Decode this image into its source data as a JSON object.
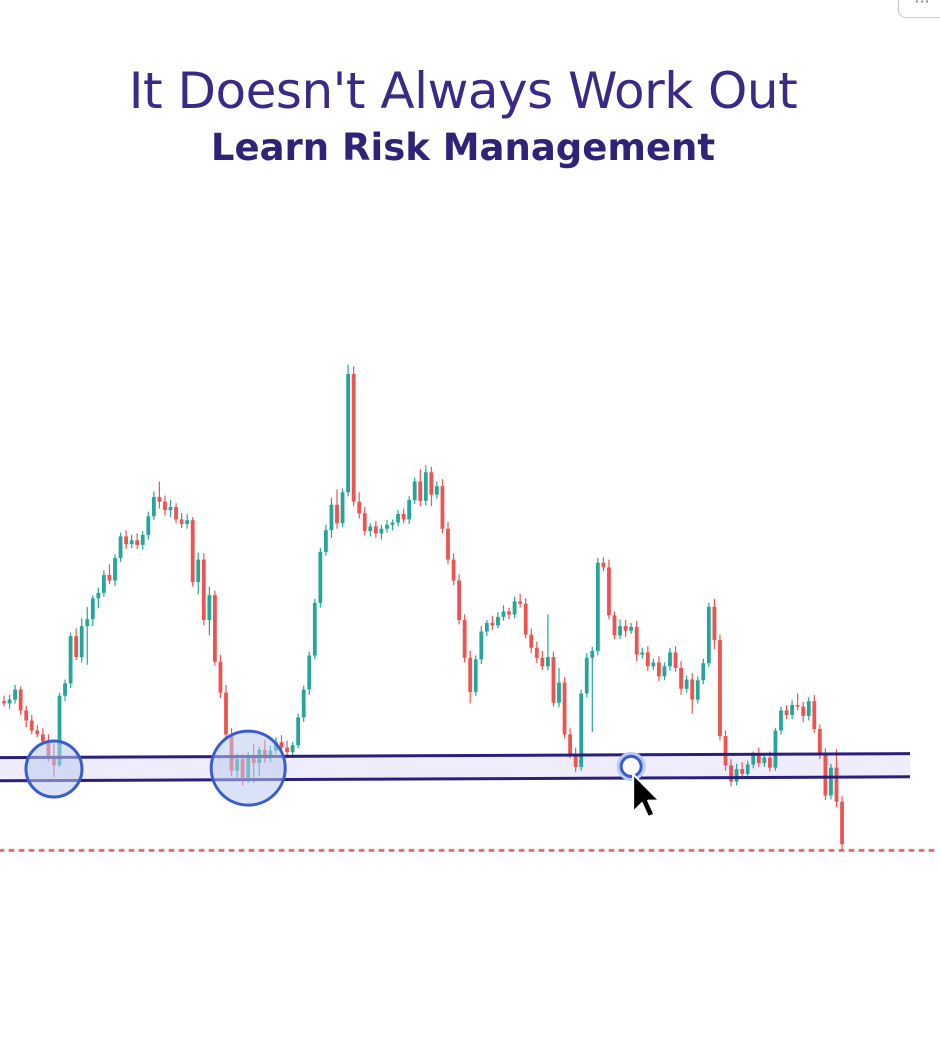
{
  "header": {
    "title": "It Doesn't Always Work Out",
    "subtitle": "Learn Risk Management"
  },
  "toolbar": {
    "more_label": "···",
    "more_icon": "ellipsis-icon"
  },
  "colors": {
    "bullish": "#26a69a",
    "bearish": "#ef5350",
    "zone_line": "#2a1f7c",
    "zone_fill": "#efedfb",
    "touch_circle": "#3b5ccc",
    "touch_fill": "#b9cbf1",
    "target_line": "#e07070",
    "cursor": "#000000"
  },
  "chart_data": {
    "type": "candlestick",
    "grid": false,
    "support_zone": {
      "upper": 63,
      "lower": 60
    },
    "touch_markers": [
      {
        "type": "circle",
        "index": 9
      },
      {
        "type": "circle",
        "index": 44
      },
      {
        "type": "small-circle",
        "index": 113
      }
    ],
    "target_level": 51,
    "cursor_index": 113,
    "ylim": [
      42,
      117
    ],
    "candles": [
      [
        70.3,
        71.0,
        69.6,
        70.0
      ],
      [
        70.0,
        71.1,
        69.3,
        70.5
      ],
      [
        70.5,
        72.4,
        70.0,
        71.8
      ],
      [
        71.8,
        72.2,
        68.5,
        69.1
      ],
      [
        69.1,
        69.7,
        66.9,
        67.8
      ],
      [
        67.8,
        68.5,
        66.0,
        66.5
      ],
      [
        66.5,
        67.2,
        65.6,
        66.0
      ],
      [
        66.0,
        66.8,
        64.6,
        65.1
      ],
      [
        65.1,
        66.0,
        62.5,
        63.2
      ],
      [
        63.2,
        64.8,
        60.5,
        62.0
      ],
      [
        62.0,
        71.4,
        61.8,
        71.0
      ],
      [
        71.0,
        73.1,
        70.3,
        72.6
      ],
      [
        72.6,
        79.1,
        72.0,
        78.7
      ],
      [
        78.7,
        79.7,
        75.6,
        76.0
      ],
      [
        76.0,
        81.0,
        75.3,
        80.0
      ],
      [
        80.0,
        82.5,
        75.0,
        80.9
      ],
      [
        80.9,
        84.0,
        80.0,
        83.6
      ],
      [
        83.6,
        85.0,
        82.3,
        84.3
      ],
      [
        84.3,
        87.2,
        83.8,
        86.6
      ],
      [
        86.6,
        88.0,
        85.4,
        85.9
      ],
      [
        85.9,
        89.3,
        85.2,
        88.8
      ],
      [
        88.8,
        92.1,
        88.3,
        91.6
      ],
      [
        91.6,
        92.4,
        90.0,
        90.6
      ],
      [
        90.6,
        91.8,
        90.1,
        91.1
      ],
      [
        91.1,
        92.0,
        90.0,
        90.5
      ],
      [
        90.5,
        92.3,
        89.9,
        91.8
      ],
      [
        91.8,
        94.8,
        91.2,
        94.2
      ],
      [
        94.2,
        97.4,
        93.7,
        96.7
      ],
      [
        96.7,
        98.7,
        95.2,
        96.1
      ],
      [
        96.1,
        96.9,
        94.3,
        95.0
      ],
      [
        95.0,
        96.3,
        94.1,
        95.4
      ],
      [
        95.4,
        95.9,
        93.3,
        93.8
      ],
      [
        93.8,
        94.6,
        92.7,
        93.2
      ],
      [
        93.2,
        94.5,
        92.6,
        93.7
      ],
      [
        93.7,
        94.1,
        85.1,
        85.7
      ],
      [
        85.7,
        89.5,
        84.1,
        88.6
      ],
      [
        88.6,
        89.4,
        80.1,
        80.8
      ],
      [
        80.8,
        85.1,
        78.8,
        84.0
      ],
      [
        84.0,
        84.6,
        74.9,
        75.4
      ],
      [
        75.4,
        76.3,
        70.7,
        71.4
      ],
      [
        71.4,
        72.4,
        65.4,
        66.0
      ],
      [
        66.0,
        66.8,
        60.6,
        61.3
      ],
      [
        61.3,
        63.5,
        60.4,
        62.8
      ],
      [
        62.8,
        63.4,
        59.4,
        60.4
      ],
      [
        60.4,
        63.7,
        59.7,
        63.2
      ],
      [
        63.2,
        64.8,
        59.7,
        62.3
      ],
      [
        62.3,
        64.4,
        60.6,
        64.0
      ],
      [
        64.0,
        65.3,
        62.3,
        62.9
      ],
      [
        62.9,
        64.5,
        62.4,
        63.9
      ],
      [
        63.9,
        65.6,
        63.5,
        65.0
      ],
      [
        65.0,
        65.9,
        63.7,
        64.3
      ],
      [
        64.3,
        65.2,
        63.3,
        63.7
      ],
      [
        63.7,
        65.0,
        63.0,
        64.6
      ],
      [
        64.6,
        68.7,
        64.2,
        68.2
      ],
      [
        68.2,
        72.3,
        67.6,
        71.8
      ],
      [
        71.8,
        76.7,
        71.1,
        76.2
      ],
      [
        76.2,
        83.5,
        75.7,
        83.0
      ],
      [
        83.0,
        90.1,
        82.4,
        89.6
      ],
      [
        89.6,
        93.1,
        89.1,
        92.4
      ],
      [
        92.4,
        96.6,
        91.4,
        95.7
      ],
      [
        95.7,
        97.7,
        92.6,
        93.3
      ],
      [
        93.3,
        97.8,
        92.8,
        97.3
      ],
      [
        97.3,
        113.8,
        96.8,
        112.6
      ],
      [
        112.6,
        113.6,
        95.5,
        96.1
      ],
      [
        96.1,
        97.3,
        93.9,
        94.6
      ],
      [
        94.6,
        95.4,
        91.7,
        92.3
      ],
      [
        92.3,
        93.3,
        91.6,
        92.9
      ],
      [
        92.9,
        93.6,
        91.4,
        92.0
      ],
      [
        92.0,
        93.1,
        91.2,
        92.6
      ],
      [
        92.6,
        93.7,
        92.1,
        93.1
      ],
      [
        93.1,
        93.8,
        92.4,
        93.4
      ],
      [
        93.4,
        95.0,
        92.9,
        94.5
      ],
      [
        94.5,
        95.2,
        93.3,
        93.8
      ],
      [
        93.8,
        96.8,
        93.2,
        96.3
      ],
      [
        96.3,
        99.2,
        95.8,
        98.7
      ],
      [
        98.7,
        100.3,
        95.5,
        96.2
      ],
      [
        96.2,
        100.8,
        95.6,
        99.9
      ],
      [
        99.9,
        100.6,
        95.5,
        97.0
      ],
      [
        97.0,
        98.7,
        96.5,
        98.1
      ],
      [
        98.1,
        99.0,
        92.0,
        92.6
      ],
      [
        92.6,
        93.5,
        88.0,
        88.6
      ],
      [
        88.6,
        89.4,
        85.3,
        85.9
      ],
      [
        85.9,
        86.7,
        80.2,
        80.8
      ],
      [
        80.8,
        81.5,
        75.3,
        75.9
      ],
      [
        75.9,
        76.8,
        70.0,
        71.5
      ],
      [
        71.5,
        76.2,
        71.0,
        75.7
      ],
      [
        75.7,
        80.0,
        75.1,
        79.3
      ],
      [
        79.3,
        80.8,
        78.7,
        80.4
      ],
      [
        80.4,
        81.3,
        79.5,
        80.1
      ],
      [
        80.1,
        81.8,
        79.7,
        81.2
      ],
      [
        81.2,
        82.7,
        80.7,
        81.9
      ],
      [
        81.9,
        82.4,
        80.9,
        81.5
      ],
      [
        81.5,
        83.8,
        81.0,
        83.2
      ],
      [
        83.2,
        84.2,
        82.4,
        82.9
      ],
      [
        82.9,
        83.6,
        78.4,
        78.9
      ],
      [
        78.9,
        79.7,
        76.5,
        77.2
      ],
      [
        77.2,
        78.0,
        75.2,
        75.9
      ],
      [
        75.9,
        76.8,
        74.3,
        74.8
      ],
      [
        74.8,
        81.5,
        74.3,
        76.0
      ],
      [
        76.0,
        76.7,
        69.6,
        70.1
      ],
      [
        70.1,
        74.6,
        69.5,
        72.7
      ],
      [
        72.7,
        73.4,
        65.5,
        66.0
      ],
      [
        66.0,
        66.8,
        62.9,
        63.4
      ],
      [
        63.4,
        64.3,
        61.1,
        61.8
      ],
      [
        61.8,
        71.8,
        61.3,
        71.3
      ],
      [
        71.3,
        76.5,
        70.8,
        75.9
      ],
      [
        75.9,
        77.3,
        66.3,
        76.8
      ],
      [
        76.8,
        88.8,
        76.2,
        88.2
      ],
      [
        88.2,
        88.9,
        87.1,
        87.6
      ],
      [
        87.6,
        88.6,
        80.9,
        81.4
      ],
      [
        81.4,
        81.9,
        78.3,
        78.8
      ],
      [
        78.8,
        80.9,
        78.3,
        80.0
      ],
      [
        80.0,
        80.8,
        78.6,
        79.4
      ],
      [
        79.4,
        80.4,
        79.0,
        79.9
      ],
      [
        79.9,
        80.7,
        75.5,
        76.3
      ],
      [
        76.3,
        77.2,
        75.8,
        76.6
      ],
      [
        76.6,
        77.4,
        74.2,
        74.8
      ],
      [
        74.8,
        75.8,
        74.3,
        75.3
      ],
      [
        75.3,
        76.1,
        72.9,
        73.5
      ],
      [
        73.5,
        75.3,
        73.0,
        74.8
      ],
      [
        74.8,
        77.2,
        74.2,
        76.6
      ],
      [
        76.6,
        77.4,
        74.1,
        74.6
      ],
      [
        74.6,
        75.5,
        71.1,
        71.9
      ],
      [
        71.9,
        73.6,
        71.4,
        73.1
      ],
      [
        73.1,
        73.9,
        68.7,
        70.5
      ],
      [
        70.5,
        73.5,
        70.0,
        73.0
      ],
      [
        73.0,
        75.8,
        72.5,
        75.2
      ],
      [
        75.2,
        83.0,
        74.7,
        82.5
      ],
      [
        82.5,
        83.5,
        77.0,
        78.2
      ],
      [
        78.2,
        78.9,
        65.2,
        65.8
      ],
      [
        65.8,
        66.5,
        61.3,
        62.0
      ],
      [
        62.0,
        62.8,
        59.3,
        59.9
      ],
      [
        59.9,
        62.2,
        59.4,
        61.5
      ],
      [
        61.5,
        62.4,
        60.6,
        60.9
      ],
      [
        60.9,
        62.6,
        60.5,
        62.1
      ],
      [
        62.1,
        63.8,
        61.6,
        63.4
      ],
      [
        63.4,
        64.3,
        61.8,
        62.3
      ],
      [
        62.3,
        63.4,
        61.8,
        63.0
      ],
      [
        63.0,
        63.8,
        61.2,
        61.7
      ],
      [
        61.7,
        66.8,
        61.3,
        66.5
      ],
      [
        66.5,
        69.6,
        66.0,
        69.1
      ],
      [
        69.1,
        69.8,
        68.0,
        68.5
      ],
      [
        68.5,
        70.4,
        68.0,
        69.8
      ],
      [
        69.8,
        71.3,
        69.1,
        69.6
      ],
      [
        69.6,
        70.2,
        67.6,
        68.4
      ],
      [
        68.4,
        70.8,
        67.8,
        70.3
      ],
      [
        70.3,
        71.1,
        66.2,
        66.7
      ],
      [
        66.7,
        67.3,
        62.8,
        63.3
      ],
      [
        63.3,
        64.2,
        57.5,
        58.1
      ],
      [
        58.1,
        62.2,
        57.6,
        61.7
      ],
      [
        61.7,
        64.1,
        56.6,
        57.3
      ],
      [
        57.3,
        58.0,
        51.1,
        51.8
      ]
    ]
  }
}
